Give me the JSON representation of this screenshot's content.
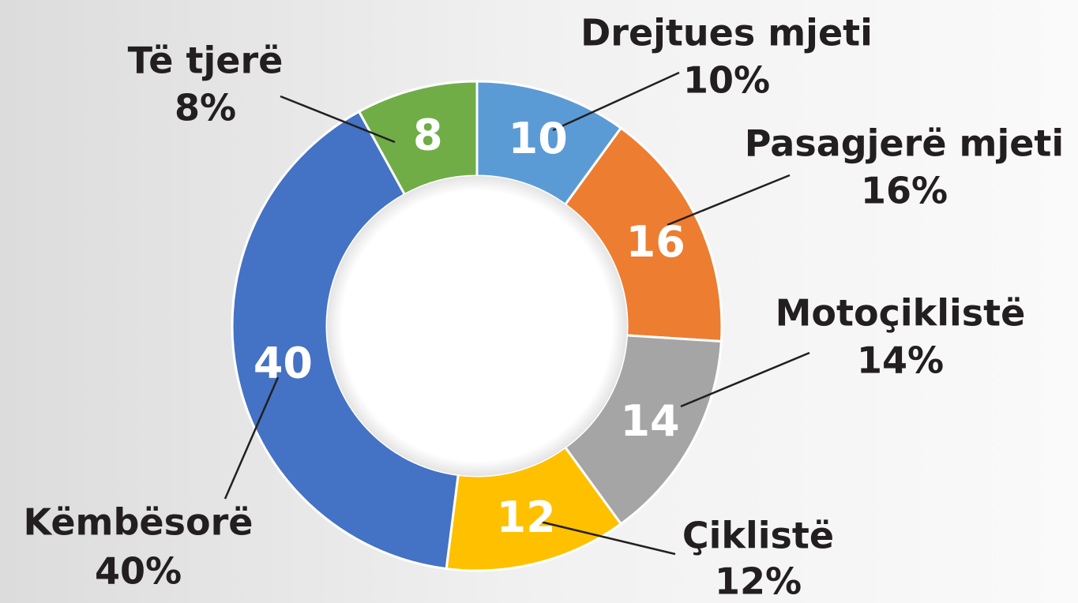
{
  "chart_data": {
    "type": "donut",
    "categories": [
      "Drejtues mjeti",
      "Pasagjerë mjeti",
      "Motoçiklistë",
      "Çiklistë",
      "Këmbësorë",
      "Të tjerë"
    ],
    "values": [
      10,
      16,
      14,
      12,
      40,
      8
    ],
    "value_labels": [
      "10%",
      "16%",
      "14%",
      "12%",
      "40%",
      "8%"
    ],
    "colors": [
      "#5b9bd5",
      "#ed7d31",
      "#a5a5a5",
      "#ffc000",
      "#4472c4",
      "#70ad47"
    ]
  }
}
